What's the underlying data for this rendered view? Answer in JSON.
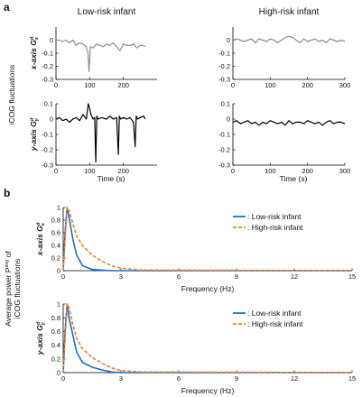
{
  "panel_labels": [
    "a",
    "b"
  ],
  "shared_labels": {
    "a_ylabel": "iCOG fluctuations",
    "b_ylabel_line1": "Average power P",
    "b_ylabel_sup": "avg",
    "b_ylabel_line1_tail": " of",
    "b_ylabel_line2": "iCOG fluctuations"
  },
  "chart_data": [
    {
      "id": "a-low-x",
      "type": "line",
      "title": "Low-risk infant",
      "ylabel": "x-axis Gx",
      "ylabel_sup": "d",
      "ylabel_sub": "x",
      "xlabel": "",
      "xlim": [
        0,
        300
      ],
      "ylim": [
        -0.3,
        0.1
      ],
      "xticks": [
        0,
        100,
        200
      ],
      "yticks": [
        0,
        -0.1,
        -0.2,
        -0.3
      ],
      "ytick_labels": [
        "0",
        "-0.1",
        "-0.2",
        "-0.3"
      ],
      "series": [
        {
          "color": "#8c8c8c",
          "x": [
            0,
            10,
            20,
            30,
            40,
            50,
            60,
            70,
            80,
            90,
            95,
            98,
            102,
            110,
            120,
            130,
            140,
            150,
            160,
            170,
            180,
            190,
            200,
            210,
            220,
            230,
            240,
            250,
            260,
            265
          ],
          "y": [
            0.0,
            0.0,
            -0.01,
            0.0,
            -0.02,
            0.0,
            -0.04,
            -0.02,
            -0.03,
            -0.05,
            -0.1,
            -0.24,
            -0.05,
            -0.06,
            -0.03,
            -0.04,
            -0.05,
            -0.03,
            -0.04,
            -0.02,
            -0.05,
            -0.08,
            -0.03,
            -0.04,
            -0.04,
            -0.03,
            -0.06,
            -0.04,
            -0.04,
            -0.05
          ]
        }
      ]
    },
    {
      "id": "a-high-x",
      "type": "line",
      "title": "High-risk infant",
      "ylabel": "x-axis Gx",
      "ylabel_sup": "d",
      "ylabel_sub": "x",
      "xlabel": "",
      "xlim": [
        0,
        300
      ],
      "ylim": [
        -0.3,
        0.1
      ],
      "xticks": [
        0,
        100,
        200,
        300
      ],
      "yticks": [
        0,
        -0.1,
        -0.2,
        -0.3
      ],
      "ytick_labels": [
        "0",
        "-0.1",
        "-0.2",
        "-0.3"
      ],
      "series": [
        {
          "color": "#8c8c8c",
          "x": [
            0,
            10,
            20,
            30,
            40,
            50,
            60,
            70,
            80,
            90,
            100,
            110,
            120,
            130,
            140,
            150,
            160,
            170,
            180,
            190,
            200,
            210,
            220,
            230,
            240,
            250,
            260,
            270,
            280,
            290,
            300
          ],
          "y": [
            0.0,
            0.01,
            0.0,
            -0.01,
            0.0,
            0.01,
            -0.02,
            0.01,
            0.0,
            -0.01,
            0.01,
            0.0,
            -0.02,
            0.0,
            0.02,
            0.03,
            0.02,
            0.0,
            -0.02,
            0.01,
            -0.01,
            0.0,
            0.01,
            -0.01,
            0.0,
            -0.02,
            0.01,
            0.0,
            -0.01,
            0.0,
            -0.01
          ]
        }
      ]
    },
    {
      "id": "a-low-y",
      "type": "line",
      "title": "",
      "ylabel": "y-axis Gy",
      "ylabel_sup": "d",
      "ylabel_sub": "y",
      "xlabel": "Time (s)",
      "xlim": [
        0,
        300
      ],
      "ylim": [
        -0.3,
        0.1
      ],
      "xticks": [
        0,
        100,
        200
      ],
      "yticks": [
        0.1,
        0,
        -0.1,
        -0.2,
        -0.3
      ],
      "ytick_labels": [
        "0.1",
        "0",
        "-0.1",
        "-0.2",
        "-0.3"
      ],
      "series": [
        {
          "color": "#000000",
          "x": [
            0,
            10,
            20,
            30,
            40,
            50,
            60,
            70,
            80,
            90,
            96,
            100,
            104,
            110,
            115,
            118,
            121,
            125,
            135,
            150,
            160,
            170,
            180,
            185,
            188,
            192,
            200,
            210,
            220,
            230,
            235,
            238,
            242,
            250,
            260,
            265
          ],
          "y": [
            0.0,
            0.01,
            -0.01,
            0.0,
            -0.02,
            0.0,
            0.01,
            -0.01,
            0.03,
            0.0,
            0.1,
            0.07,
            0.03,
            0.0,
            0.01,
            -0.28,
            0.02,
            0.0,
            0.01,
            0.0,
            0.02,
            0.0,
            0.01,
            -0.23,
            0.02,
            0.0,
            0.01,
            0.0,
            0.01,
            -0.02,
            -0.18,
            0.02,
            0.0,
            0.01,
            0.02,
            0.0
          ]
        }
      ]
    },
    {
      "id": "a-high-y",
      "type": "line",
      "title": "",
      "ylabel": "y-axis Gy",
      "ylabel_sup": "d",
      "ylabel_sub": "y",
      "xlabel": "Time (s)",
      "xlim": [
        0,
        300
      ],
      "ylim": [
        -0.3,
        0.1
      ],
      "xticks": [
        0,
        100,
        200,
        300
      ],
      "yticks": [
        0.1,
        0,
        -0.1,
        -0.2,
        -0.3
      ],
      "ytick_labels": [
        "0.1",
        "0",
        "-0.1",
        "-0.2",
        "-0.3"
      ],
      "series": [
        {
          "color": "#000000",
          "x": [
            0,
            10,
            20,
            30,
            40,
            50,
            60,
            70,
            80,
            90,
            100,
            110,
            120,
            130,
            140,
            150,
            160,
            170,
            180,
            190,
            200,
            210,
            220,
            230,
            240,
            250,
            260,
            270,
            280,
            290,
            300
          ],
          "y": [
            -0.02,
            -0.01,
            -0.03,
            -0.02,
            -0.01,
            -0.03,
            -0.02,
            -0.04,
            -0.02,
            -0.03,
            -0.01,
            -0.02,
            -0.03,
            -0.02,
            -0.04,
            -0.01,
            -0.03,
            -0.02,
            -0.02,
            -0.03,
            -0.01,
            -0.02,
            -0.03,
            -0.02,
            -0.04,
            -0.02,
            -0.01,
            -0.03,
            -0.02,
            -0.02,
            -0.03
          ]
        }
      ]
    },
    {
      "id": "b-x",
      "type": "line",
      "title": "",
      "ylabel": "x-axis Gx",
      "ylabel_sup": "d",
      "ylabel_sub": "x",
      "xlabel": "Frequency (Hz)",
      "xlim": [
        0,
        15
      ],
      "ylim": [
        0,
        1
      ],
      "xticks": [
        0,
        3,
        6,
        9,
        12,
        15
      ],
      "yticks": [
        0,
        0.2,
        0.4,
        0.6,
        0.8,
        1
      ],
      "ytick_labels": [
        "0",
        "0.2",
        "0.4",
        "0.6",
        "0.8",
        "1"
      ],
      "legend_position": "top-right",
      "series": [
        {
          "name": ": Low-risk infant",
          "color": "#1f6fc0",
          "dash": "",
          "x": [
            0,
            0.1,
            0.2,
            0.3,
            0.5,
            0.7,
            1,
            1.5,
            2,
            2.5,
            3,
            15
          ],
          "y": [
            0.0,
            0.6,
            1.0,
            0.85,
            0.5,
            0.25,
            0.08,
            0.02,
            0.01,
            0.0,
            0.0,
            0.0
          ]
        },
        {
          "name": ": High-risk infant",
          "color": "#ee7d30",
          "dash": "4,2",
          "x": [
            0,
            0.1,
            0.2,
            0.3,
            0.5,
            0.7,
            1,
            1.5,
            2,
            2.5,
            3,
            4,
            15
          ],
          "y": [
            0.0,
            0.5,
            1.0,
            0.95,
            0.75,
            0.55,
            0.4,
            0.25,
            0.15,
            0.08,
            0.04,
            0.01,
            0.0
          ]
        }
      ]
    },
    {
      "id": "b-y",
      "type": "line",
      "title": "",
      "ylabel": "y-axis Gy",
      "ylabel_sup": "d",
      "ylabel_sub": "y",
      "xlabel": "Frequency (Hz)",
      "xlim": [
        0,
        15
      ],
      "ylim": [
        0,
        1
      ],
      "xticks": [
        0,
        3,
        6,
        9,
        12,
        15
      ],
      "yticks": [
        0,
        0.2,
        0.4,
        0.6,
        0.8,
        1
      ],
      "ytick_labels": [
        "0",
        "0.2",
        "0.4",
        "0.6",
        "0.8",
        "1"
      ],
      "legend_position": "top-right",
      "series": [
        {
          "name": ": Low-risk infant",
          "color": "#1f6fc0",
          "dash": "",
          "x": [
            0,
            0.1,
            0.2,
            0.3,
            0.5,
            0.7,
            1,
            1.5,
            2,
            2.5,
            3,
            15
          ],
          "y": [
            0.0,
            0.6,
            1.0,
            0.8,
            0.55,
            0.3,
            0.15,
            0.08,
            0.04,
            0.01,
            0.0,
            0.0
          ]
        },
        {
          "name": ": High-risk infant",
          "color": "#ee7d30",
          "dash": "4,2",
          "x": [
            0,
            0.1,
            0.2,
            0.3,
            0.5,
            0.7,
            1,
            1.5,
            2,
            2.5,
            3,
            4,
            15
          ],
          "y": [
            0.0,
            0.5,
            1.0,
            0.95,
            0.7,
            0.5,
            0.35,
            0.22,
            0.14,
            0.07,
            0.03,
            0.01,
            0.0
          ]
        }
      ]
    }
  ]
}
